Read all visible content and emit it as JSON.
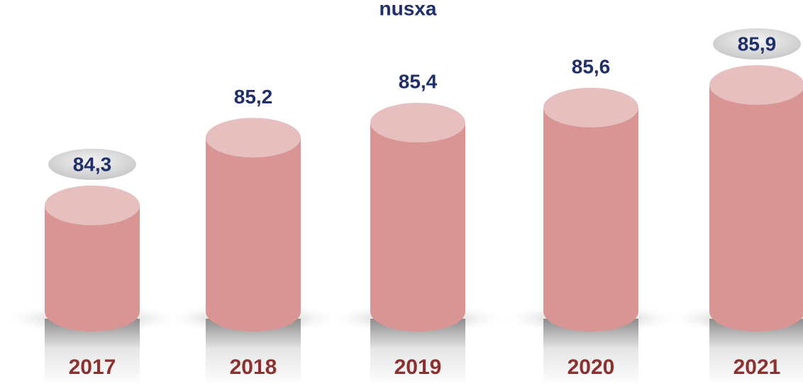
{
  "chart_data": {
    "type": "bar",
    "title": "nusxa",
    "categories": [
      "2017",
      "2018",
      "2019",
      "2020",
      "2021"
    ],
    "values": [
      84.3,
      85.2,
      85.4,
      85.6,
      85.9
    ],
    "value_labels": [
      "84,3",
      "85,2",
      "85,4",
      "85,6",
      "85,9"
    ],
    "color": "#d99594"
  }
}
